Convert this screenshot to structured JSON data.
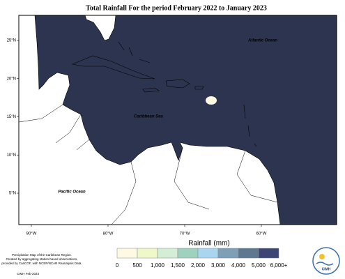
{
  "title": "Total Rainfall For the period February 2022 to January 2023",
  "map": {
    "ocean_labels": [
      "Atlantic Ocean",
      "Caribbean Sea",
      "Pacific Ocean"
    ],
    "lat_labels": [
      "25°N",
      "20°N",
      "15°N",
      "10°N",
      "5°N"
    ],
    "lon_labels": [
      "90°W",
      "80°W",
      "70°W",
      "60°W"
    ]
  },
  "legend": {
    "title": "Rainfall (mm)",
    "labels": [
      "0",
      "500",
      "1,000",
      "1,500",
      "2,000",
      "3,000",
      "4,000",
      "5,000",
      "6,000+"
    ],
    "colors": [
      "#fdf9e2",
      "#eef8c8",
      "#d4eed6",
      "#9fd1bf",
      "#a9d5ef",
      "#7f9fb6",
      "#5f7891",
      "#3c4573"
    ]
  },
  "caption": [
    "Precipitation Map of the Caribbean Region.",
    "Created by aggregating station based observations,",
    "provided by CariCOF, with NCEP/NCAR Reanalysis Data."
  ],
  "credit": "CIMH Feb-2023",
  "logo": "CIMH"
}
